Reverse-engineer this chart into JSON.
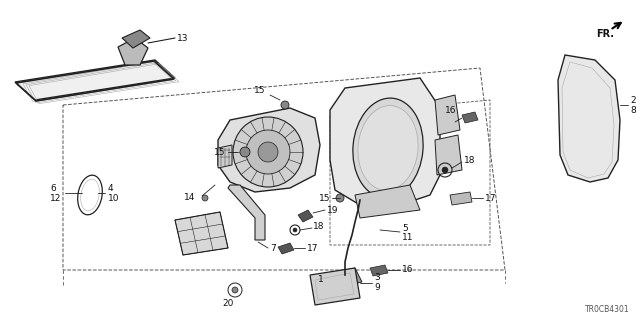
{
  "bg_color": "#ffffff",
  "diagram_code": "TR0CB4301",
  "line_color": "#222222",
  "gray": "#555555",
  "light_gray": "#aaaaaa",
  "fill_gray": "#cccccc",
  "fill_light": "#e8e8e8"
}
